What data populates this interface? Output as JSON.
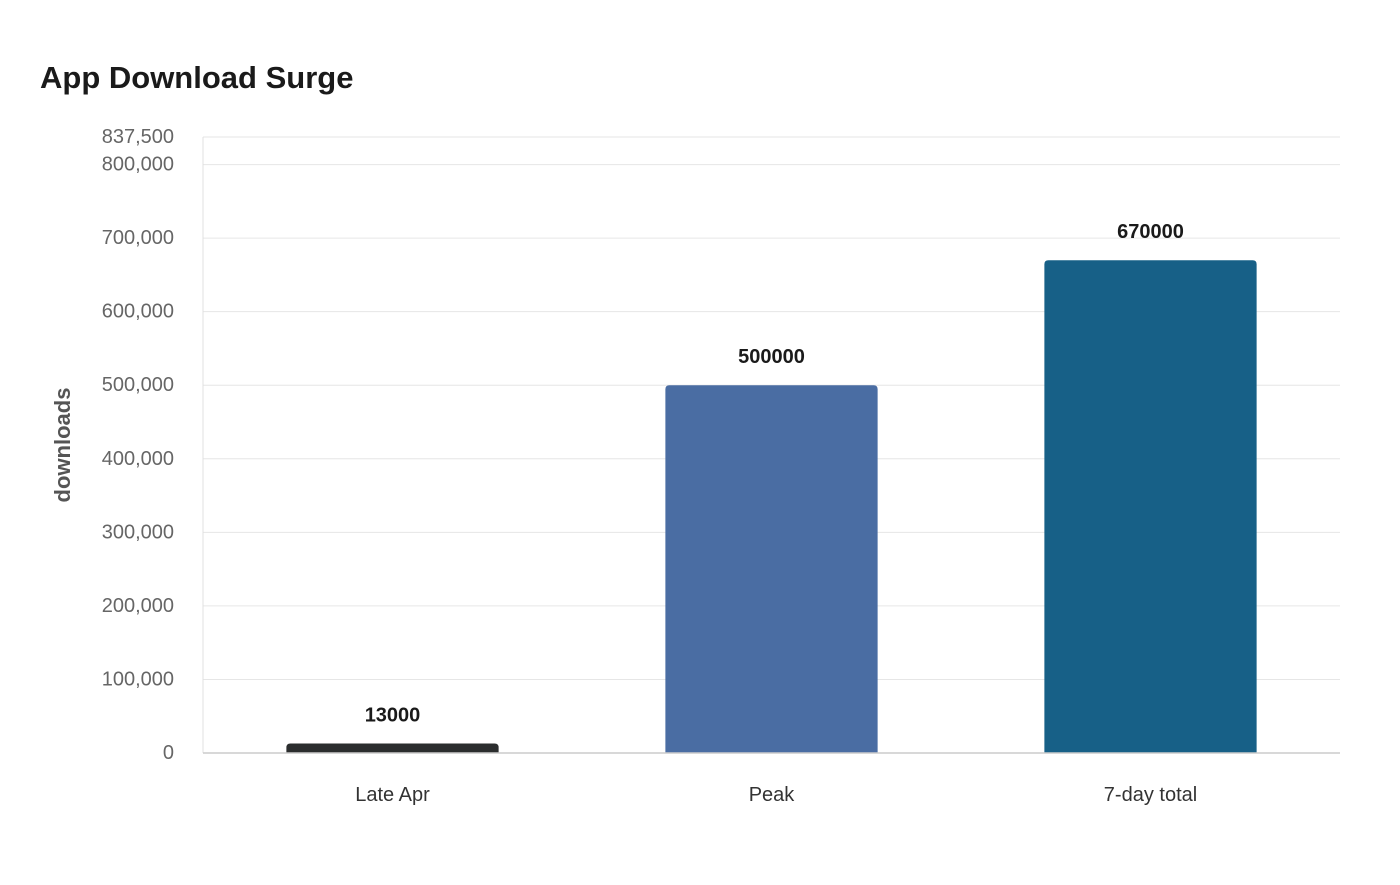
{
  "chart_data": {
    "type": "bar",
    "title": "App Download Surge",
    "ylabel": "downloads",
    "xlabel": "",
    "categories": [
      "Late Apr",
      "Peak",
      "7-day total"
    ],
    "values": [
      13000,
      500000,
      670000
    ],
    "data_labels": [
      "13000",
      "500000",
      "670000"
    ],
    "bar_colors": [
      "#2b2d2e",
      "#4a6da3",
      "#176087"
    ],
    "ylim": [
      0,
      837500
    ],
    "yticks": [
      0,
      100000,
      200000,
      300000,
      400000,
      500000,
      600000,
      700000,
      800000,
      837500
    ],
    "ytick_labels": [
      "0",
      "100,000",
      "200,000",
      "300,000",
      "400,000",
      "500,000",
      "600,000",
      "700,000",
      "800,000",
      "837,500"
    ],
    "grid": true,
    "legend": "none"
  }
}
